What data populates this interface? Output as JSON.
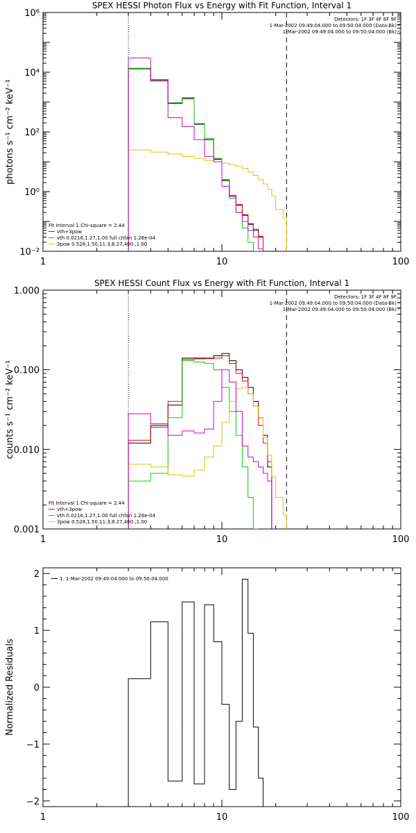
{
  "chart_data": [
    {
      "type": "line",
      "title": "SPEX HESSI Photon Flux vs Energy with Fit Function, Interval 1",
      "ylabel": "photons s⁻¹ cm⁻² keV⁻¹",
      "xscale": "log",
      "yscale": "log",
      "xlim": [
        1,
        100
      ],
      "ylim": [
        0.01,
        1000000
      ],
      "xticks": [
        1,
        10,
        100
      ],
      "xtick_labels": [
        "1",
        "10",
        "100"
      ],
      "yticks": [
        0.01,
        1,
        100,
        10000,
        1000000
      ],
      "ytick_labels": [
        "10⁻²",
        "10⁰",
        "10²",
        "10⁴",
        "10⁶"
      ],
      "vlines": [
        {
          "x": 3,
          "style": "dotted"
        },
        {
          "x": 23,
          "style": "dashed"
        }
      ],
      "header_lines": [
        "Detectors: 1F 3F 4F 8F 9F",
        "1-Mar-2002 09:49:04.000 to 09:50:04.000 (Data-Bk)",
        "1-Mar-2002 09:49:04.000 to 09:50:04.000 (Bk)"
      ],
      "legend": {
        "position": "bottom-left",
        "title": "Fit Interval 1   Chi-square = 2.44",
        "entries": [
          {
            "text": "vth+3pow",
            "color": "#ee0000"
          },
          {
            "text": "vth 0.0216,1.27,1.00  full chfan 1.26e-04",
            "color": "#00cc00"
          },
          {
            "text": "3pow 0.528,1.50,11.3,8.27,400.,1.00",
            "color": "#e6c000"
          }
        ]
      },
      "edges": [
        3,
        4,
        5,
        6,
        7,
        8,
        9,
        10,
        11,
        12,
        13,
        14,
        15,
        16,
        17,
        18,
        19,
        20,
        22,
        23
      ],
      "series": [
        {
          "color": "#000000",
          "values": [
            13000,
            5500,
            900,
            1300,
            180,
            55,
            12,
            2.4,
            0.7,
            0.35,
            0.16,
            0.08,
            0.05,
            0.03
          ]
        },
        {
          "color": "#ee0000",
          "values": [
            13500,
            5700,
            950,
            1400,
            190,
            60,
            13,
            2.5,
            0.75,
            0.37,
            0.17,
            0.085,
            0.055,
            0.032
          ]
        },
        {
          "color": "#00cc00",
          "values": [
            13500,
            5700,
            950,
            1400,
            190,
            60,
            13,
            2.3,
            0.6,
            0.2,
            0.06,
            0.02,
            0.01,
            0.004
          ]
        },
        {
          "color": "#e6c000",
          "values": [
            25,
            21,
            18,
            15,
            13,
            11,
            10,
            9,
            8,
            7,
            6,
            4.5,
            3.5,
            2.5,
            1.8,
            1.2,
            0.7,
            0.25,
            0.13,
            0.045,
            0.02,
            0.012
          ]
        },
        {
          "color": "#cc00cc",
          "values": [
            30000,
            5000,
            300,
            150,
            55,
            15,
            10,
            1.5,
            0.7,
            0.2,
            0.1,
            0.05,
            0.03,
            0.012,
            0.008,
            0.005
          ]
        }
      ]
    },
    {
      "type": "line",
      "title": "SPEX HESSI Count Flux vs Energy with Fit Function, Interval 1",
      "ylabel": "counts s⁻¹ cm⁻² keV⁻¹",
      "xscale": "log",
      "yscale": "log",
      "xlim": [
        1,
        100
      ],
      "ylim": [
        0.001,
        1
      ],
      "xticks": [
        1,
        10,
        100
      ],
      "xtick_labels": [
        "1",
        "10",
        "100"
      ],
      "yticks": [
        0.001,
        0.01,
        0.1,
        1
      ],
      "ytick_labels": [
        "0.001",
        "0.010",
        "0.100",
        "1.000"
      ],
      "vlines": [
        {
          "x": 3,
          "style": "dotted"
        },
        {
          "x": 23,
          "style": "dashed"
        }
      ],
      "header_lines": [
        "Detectors: 1F 3F 4F 8F 9F",
        "1-Mar-2002 09:49:04.000 to 09:50:04.000 (Data-Bk)",
        "1-Mar-2002 09:49:04.000 to 09:50:04.000 (Bk)"
      ],
      "legend": {
        "position": "bottom-left",
        "title": "Fit Interval 1   Chi-square = 2.44",
        "entries": [
          {
            "text": "vth+3pow",
            "color": "#ee0000"
          },
          {
            "text": "vth 0.0216,1.27,1.00  full chfan 1.26e-04",
            "color": "#00cc00"
          },
          {
            "text": "3pow 0.528,1.50,11.3,8.27,400.,1.00",
            "color": "#e6c000"
          }
        ]
      },
      "edges": [
        3,
        4,
        5,
        6,
        7,
        8,
        9,
        10,
        11,
        12,
        13,
        14,
        15,
        16,
        17,
        18,
        19,
        20,
        22,
        23
      ],
      "series": [
        {
          "color": "#000000",
          "values": [
            0.012,
            0.02,
            0.036,
            0.14,
            0.14,
            0.14,
            0.15,
            0.16,
            0.13,
            0.1,
            0.08,
            0.06,
            0.04,
            0.025,
            0.015,
            0.006
          ]
        },
        {
          "color": "#ee0000",
          "values": [
            0.013,
            0.019,
            0.04,
            0.135,
            0.137,
            0.138,
            0.14,
            0.15,
            0.12,
            0.09,
            0.072,
            0.05,
            0.035,
            0.02,
            0.012,
            0.007
          ]
        },
        {
          "color": "#00cc00",
          "values": [
            0.004,
            0.005,
            0.025,
            0.13,
            0.125,
            0.12,
            0.1,
            0.06,
            0.03,
            0.015,
            0.006,
            0.0025,
            0.001
          ]
        },
        {
          "color": "#e6c000",
          "values": [
            0.0065,
            0.006,
            0.0048,
            0.0046,
            0.0055,
            0.008,
            0.011,
            0.022,
            0.04,
            0.058,
            0.06,
            0.05,
            0.035,
            0.025,
            0.014,
            0.0085,
            0.0045,
            0.0025,
            0.0015,
            0.001
          ]
        },
        {
          "color": "#cc00cc",
          "values": [
            0.028,
            0.021,
            0.015,
            0.017,
            0.016,
            0.018,
            0.04,
            0.1,
            0.07,
            0.03,
            0.011,
            0.008,
            0.007,
            0.006,
            0.005,
            0.004
          ]
        }
      ]
    },
    {
      "type": "line",
      "ylabel": "Normalized Residuals",
      "xscale": "log",
      "xlim": [
        1,
        100
      ],
      "ylim": [
        -2.1,
        2.1
      ],
      "xticks": [
        1,
        10,
        100
      ],
      "xtick_labels": [
        "1",
        "10",
        "100"
      ],
      "yticks": [
        -2,
        -1,
        0,
        1,
        2
      ],
      "ytick_labels": [
        "−2",
        "−1",
        "0",
        "1",
        "2"
      ],
      "legend": {
        "position": "top-left",
        "entries": [
          {
            "text": "1.  1-Mar-2002 09:49:04.000 to 09:50:04.000",
            "color": "#000000"
          }
        ]
      },
      "edges": [
        3,
        4,
        5,
        6,
        7,
        8,
        9,
        10,
        11,
        12,
        13,
        14,
        15,
        16,
        17,
        18,
        19,
        20,
        22,
        23
      ],
      "series": [
        {
          "color": "#000000",
          "values": [
            0.15,
            1.15,
            -1.65,
            1.5,
            -1.7,
            1.45,
            0.8,
            -0.3,
            -1.8,
            -0.6,
            1.9,
            0.95,
            -0.7,
            -1.6,
            -2.2
          ]
        }
      ]
    }
  ]
}
